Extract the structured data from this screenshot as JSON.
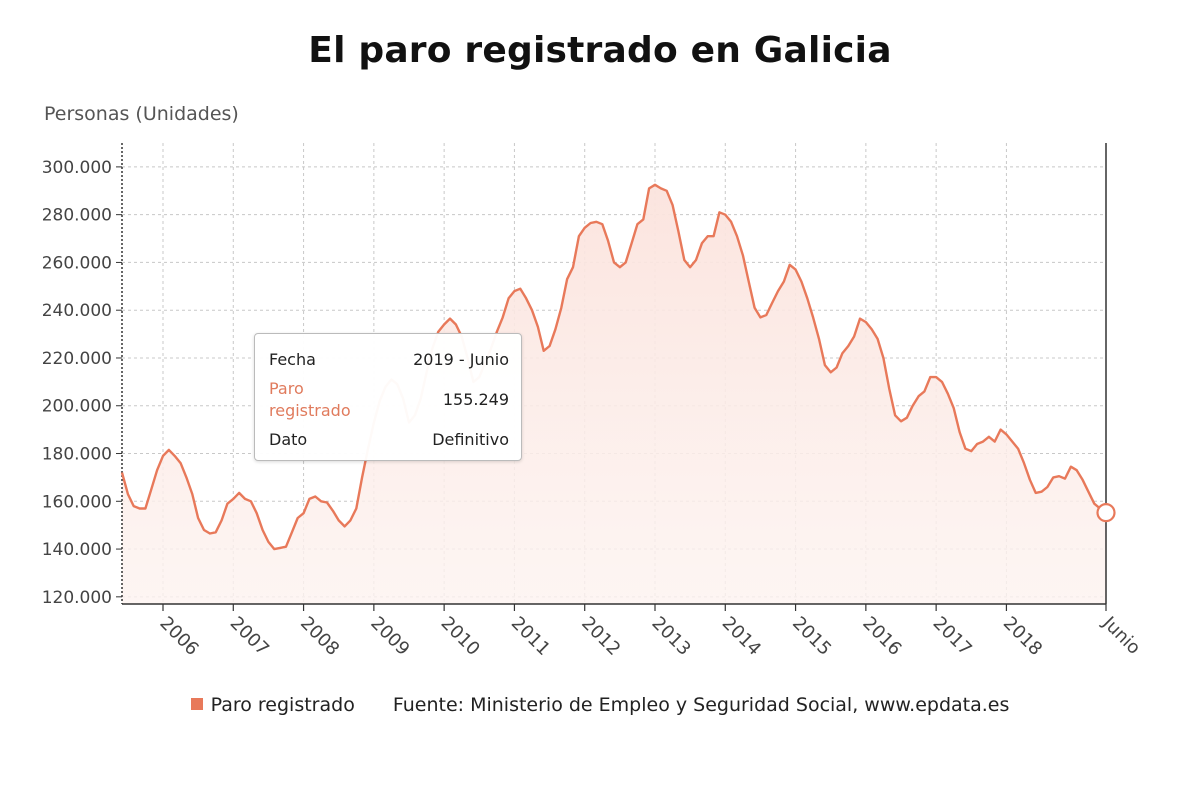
{
  "title": "El paro registrado en Galicia",
  "ylabel": "Personas (Unidades)",
  "tooltip": {
    "fecha_label": "Fecha",
    "fecha_value": "2019 - Junio",
    "series_label": "Paro registrado",
    "series_value": "155.249",
    "dato_label": "Dato",
    "dato_value": "Definitivo"
  },
  "legend": {
    "series_name": "Paro registrado",
    "source": "Fuente: Ministerio de Empleo y Seguridad Social, www.epdata.es"
  },
  "colors": {
    "line": "#e8795a",
    "area_top": "#fbe3dd",
    "grid": "#c8c8c8",
    "axis": "#333333"
  },
  "chart_data": {
    "type": "area",
    "ylim": [
      117000,
      310000
    ],
    "ytick_values": [
      120000,
      140000,
      160000,
      180000,
      200000,
      220000,
      240000,
      260000,
      280000,
      300000
    ],
    "ytick_labels": [
      "120.000",
      "140.000",
      "160.000",
      "180.000",
      "200.000",
      "220.000",
      "240.000",
      "260.000",
      "280.000",
      "300.000"
    ],
    "xlim": [
      "2005-06",
      "2019-06"
    ],
    "xtick_values": [
      "2006-01",
      "2007-01",
      "2008-01",
      "2009-01",
      "2010-01",
      "2011-01",
      "2012-01",
      "2013-01",
      "2014-01",
      "2015-01",
      "2016-01",
      "2017-01",
      "2018-01",
      "2019-06"
    ],
    "xtick_labels": [
      "2006",
      "2007",
      "2008",
      "2009",
      "2010",
      "2011",
      "2012",
      "2013",
      "2014",
      "2015",
      "2016",
      "2017",
      "2018",
      "Junio"
    ],
    "grid": true,
    "legend_position": "bottom",
    "highlighted_point": {
      "x": "2019-06",
      "y": 155249
    },
    "series": [
      {
        "name": "Paro registrado",
        "points": [
          [
            "2005-06",
            172000
          ],
          [
            "2005-07",
            163000
          ],
          [
            "2005-08",
            158000
          ],
          [
            "2005-09",
            157000
          ],
          [
            "2005-10",
            157000
          ],
          [
            "2005-11",
            165000
          ],
          [
            "2005-12",
            173000
          ],
          [
            "2006-01",
            179000
          ],
          [
            "2006-02",
            181500
          ],
          [
            "2006-03",
            179000
          ],
          [
            "2006-04",
            176000
          ],
          [
            "2006-05",
            170000
          ],
          [
            "2006-06",
            163000
          ],
          [
            "2006-07",
            153000
          ],
          [
            "2006-08",
            148000
          ],
          [
            "2006-09",
            146500
          ],
          [
            "2006-10",
            147000
          ],
          [
            "2006-11",
            152000
          ],
          [
            "2006-12",
            159000
          ],
          [
            "2007-01",
            161000
          ],
          [
            "2007-02",
            163500
          ],
          [
            "2007-03",
            161000
          ],
          [
            "2007-04",
            160000
          ],
          [
            "2007-05",
            155000
          ],
          [
            "2007-06",
            148000
          ],
          [
            "2007-07",
            143000
          ],
          [
            "2007-08",
            140000
          ],
          [
            "2007-09",
            140500
          ],
          [
            "2007-10",
            141000
          ],
          [
            "2007-11",
            147000
          ],
          [
            "2007-12",
            153000
          ],
          [
            "2008-01",
            155000
          ],
          [
            "2008-02",
            161000
          ],
          [
            "2008-03",
            162000
          ],
          [
            "2008-04",
            160000
          ],
          [
            "2008-05",
            159500
          ],
          [
            "2008-06",
            156000
          ],
          [
            "2008-07",
            152000
          ],
          [
            "2008-08",
            149500
          ],
          [
            "2008-09",
            152000
          ],
          [
            "2008-10",
            157000
          ],
          [
            "2008-11",
            170000
          ],
          [
            "2008-12",
            182000
          ],
          [
            "2009-01",
            193000
          ],
          [
            "2009-02",
            202000
          ],
          [
            "2009-03",
            208000
          ],
          [
            "2009-04",
            211000
          ],
          [
            "2009-05",
            209000
          ],
          [
            "2009-06",
            203000
          ],
          [
            "2009-07",
            193000
          ],
          [
            "2009-08",
            196000
          ],
          [
            "2009-09",
            203000
          ],
          [
            "2009-10",
            214000
          ],
          [
            "2009-11",
            224000
          ],
          [
            "2009-12",
            231000
          ],
          [
            "2010-01",
            234000
          ],
          [
            "2010-02",
            236500
          ],
          [
            "2010-03",
            234000
          ],
          [
            "2010-04",
            229000
          ],
          [
            "2010-05",
            220000
          ],
          [
            "2010-06",
            210000
          ],
          [
            "2010-07",
            212000
          ],
          [
            "2010-08",
            218000
          ],
          [
            "2010-09",
            224000
          ],
          [
            "2010-10",
            231000
          ],
          [
            "2010-11",
            237000
          ],
          [
            "2010-12",
            245000
          ],
          [
            "2011-01",
            248000
          ],
          [
            "2011-02",
            249000
          ],
          [
            "2011-03",
            245000
          ],
          [
            "2011-04",
            240000
          ],
          [
            "2011-05",
            233000
          ],
          [
            "2011-06",
            223000
          ],
          [
            "2011-07",
            225000
          ],
          [
            "2011-08",
            232000
          ],
          [
            "2011-09",
            241000
          ],
          [
            "2011-10",
            253000
          ],
          [
            "2011-11",
            258000
          ],
          [
            "2011-12",
            271000
          ],
          [
            "2012-01",
            274500
          ],
          [
            "2012-02",
            276500
          ],
          [
            "2012-03",
            277000
          ],
          [
            "2012-04",
            276000
          ],
          [
            "2012-05",
            269000
          ],
          [
            "2012-06",
            260000
          ],
          [
            "2012-07",
            258000
          ],
          [
            "2012-08",
            260000
          ],
          [
            "2012-09",
            268000
          ],
          [
            "2012-10",
            276000
          ],
          [
            "2012-11",
            278000
          ],
          [
            "2012-12",
            291000
          ],
          [
            "2013-01",
            292500
          ],
          [
            "2013-02",
            291000
          ],
          [
            "2013-03",
            290000
          ],
          [
            "2013-04",
            284000
          ],
          [
            "2013-05",
            273000
          ],
          [
            "2013-06",
            261000
          ],
          [
            "2013-07",
            258000
          ],
          [
            "2013-08",
            261000
          ],
          [
            "2013-09",
            268000
          ],
          [
            "2013-10",
            271000
          ],
          [
            "2013-11",
            271000
          ],
          [
            "2013-12",
            281000
          ],
          [
            "2014-01",
            280000
          ],
          [
            "2014-02",
            277000
          ],
          [
            "2014-03",
            271000
          ],
          [
            "2014-04",
            263000
          ],
          [
            "2014-05",
            252000
          ],
          [
            "2014-06",
            241000
          ],
          [
            "2014-07",
            237000
          ],
          [
            "2014-08",
            238000
          ],
          [
            "2014-09",
            243000
          ],
          [
            "2014-10",
            248000
          ],
          [
            "2014-11",
            252000
          ],
          [
            "2014-12",
            259000
          ],
          [
            "2015-01",
            257000
          ],
          [
            "2015-02",
            252000
          ],
          [
            "2015-03",
            245000
          ],
          [
            "2015-04",
            237000
          ],
          [
            "2015-05",
            228000
          ],
          [
            "2015-06",
            217000
          ],
          [
            "2015-07",
            214000
          ],
          [
            "2015-08",
            216000
          ],
          [
            "2015-09",
            222000
          ],
          [
            "2015-10",
            225000
          ],
          [
            "2015-11",
            229000
          ],
          [
            "2015-12",
            236500
          ],
          [
            "2016-01",
            235000
          ],
          [
            "2016-02",
            232000
          ],
          [
            "2016-03",
            228000
          ],
          [
            "2016-04",
            220000
          ],
          [
            "2016-05",
            207000
          ],
          [
            "2016-06",
            196000
          ],
          [
            "2016-07",
            193500
          ],
          [
            "2016-08",
            195000
          ],
          [
            "2016-09",
            200000
          ],
          [
            "2016-10",
            204000
          ],
          [
            "2016-11",
            206000
          ],
          [
            "2016-12",
            212000
          ],
          [
            "2017-01",
            212000
          ],
          [
            "2017-02",
            210000
          ],
          [
            "2017-03",
            205000
          ],
          [
            "2017-04",
            199000
          ],
          [
            "2017-05",
            189000
          ],
          [
            "2017-06",
            182000
          ],
          [
            "2017-07",
            181000
          ],
          [
            "2017-08",
            184000
          ],
          [
            "2017-09",
            185000
          ],
          [
            "2017-10",
            187000
          ],
          [
            "2017-11",
            185000
          ],
          [
            "2017-12",
            190000
          ],
          [
            "2018-01",
            188000
          ],
          [
            "2018-02",
            185000
          ],
          [
            "2018-03",
            182000
          ],
          [
            "2018-04",
            176000
          ],
          [
            "2018-05",
            169000
          ],
          [
            "2018-06",
            163500
          ],
          [
            "2018-07",
            164000
          ],
          [
            "2018-08",
            166000
          ],
          [
            "2018-09",
            170000
          ],
          [
            "2018-10",
            170500
          ],
          [
            "2018-11",
            169500
          ],
          [
            "2018-12",
            174500
          ],
          [
            "2019-01",
            173000
          ],
          [
            "2019-02",
            169000
          ],
          [
            "2019-03",
            164000
          ],
          [
            "2019-04",
            159000
          ],
          [
            "2019-05",
            157000
          ],
          [
            "2019-06",
            155249
          ]
        ]
      }
    ]
  }
}
